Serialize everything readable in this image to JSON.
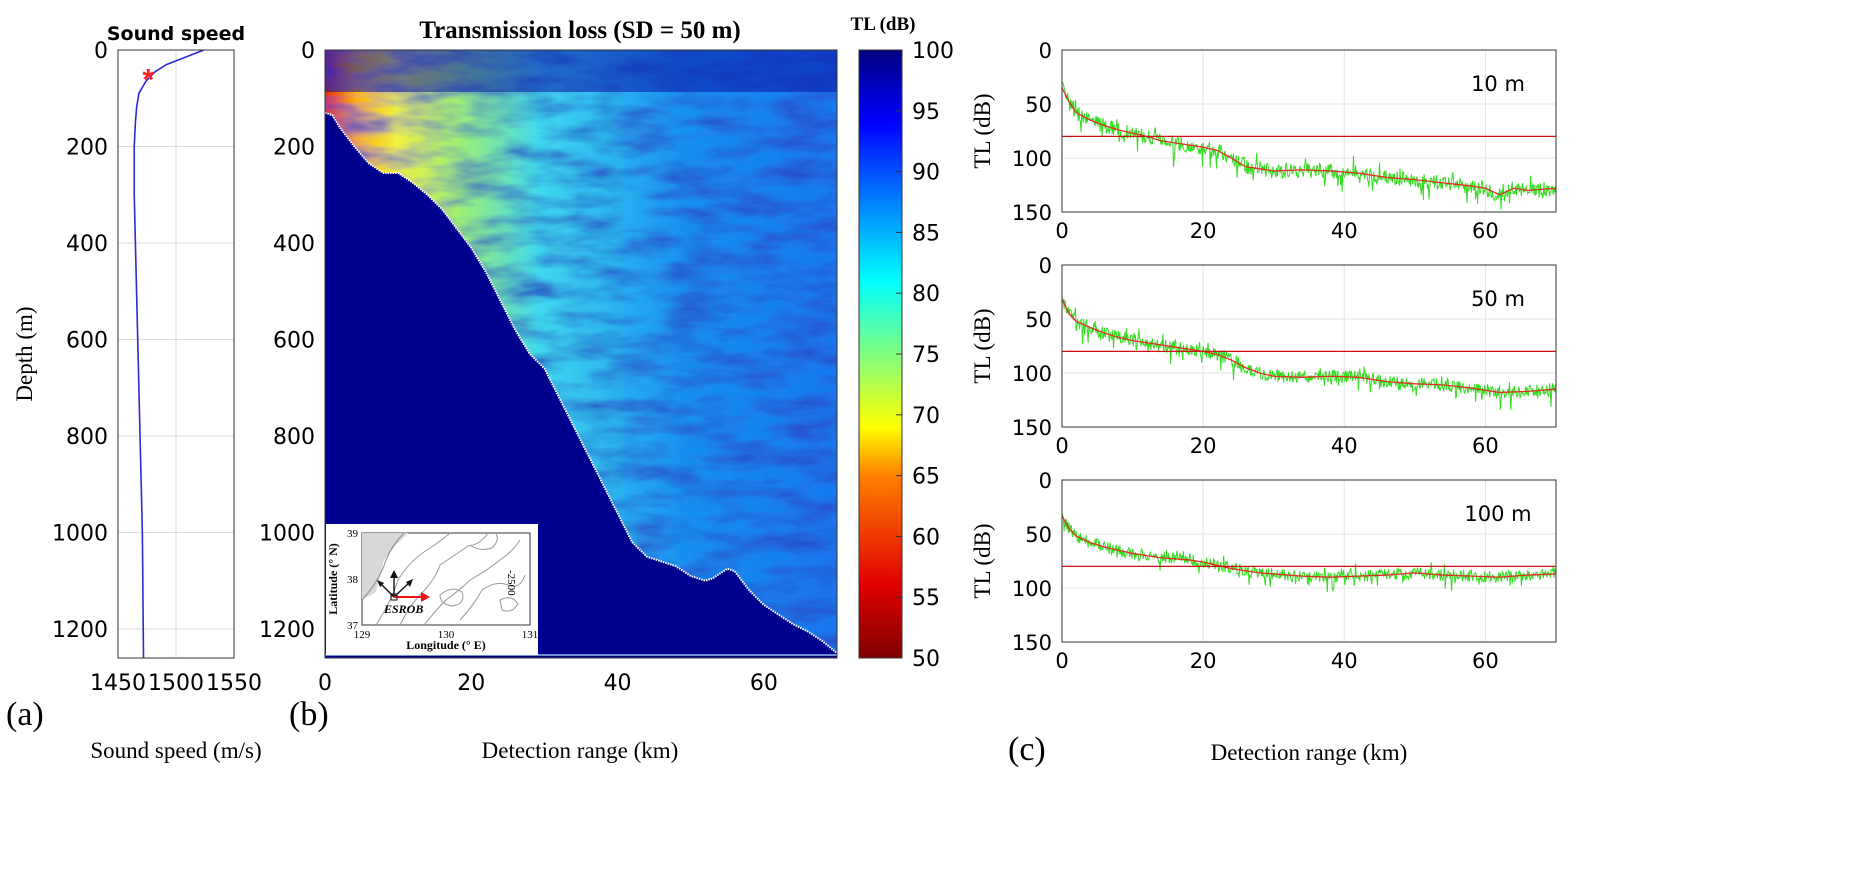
{
  "panel_labels": {
    "a": "(a)",
    "b": "(b)",
    "c": "(c)"
  },
  "chart_data": [
    {
      "id": "sound-speed",
      "type": "line",
      "title": "Sound speed",
      "xlabel": "Sound speed (m/s)",
      "ylabel": "Depth (m)",
      "xlim": [
        1450,
        1550
      ],
      "ylim": [
        0,
        1260
      ],
      "y_reversed": true,
      "xticks": [
        1450,
        1500,
        1550
      ],
      "yticks": [
        0,
        200,
        400,
        600,
        800,
        1000,
        1200
      ],
      "grid": true,
      "series": [
        {
          "name": "profile",
          "color": "#2a2ad8",
          "x": [
            1524,
            1508,
            1492,
            1482,
            1474,
            1468,
            1466,
            1465,
            1464,
            1464,
            1465,
            1466,
            1467,
            1468,
            1469,
            1470,
            1471,
            1472
          ],
          "y": [
            0,
            15,
            30,
            45,
            65,
            90,
            120,
            150,
            200,
            300,
            400,
            500,
            600,
            700,
            800,
            900,
            1000,
            1260
          ]
        }
      ],
      "marker": {
        "x": 1476,
        "y": 50,
        "symbol": "*",
        "color": "#ff2020"
      }
    },
    {
      "id": "transmission-loss",
      "type": "heatmap",
      "title": "Transmission loss (SD = 50 m)",
      "xlabel": "Detection range (km)",
      "xlim": [
        0,
        70
      ],
      "ylim": [
        0,
        1260
      ],
      "y_reversed": true,
      "xticks": [
        0,
        20,
        40,
        60
      ],
      "yticks": [
        0,
        200,
        400,
        600,
        800,
        1000,
        1200
      ],
      "colorbar": {
        "label": "TL (dB)",
        "min": 50,
        "max": 100,
        "ticks": [
          50,
          55,
          60,
          65,
          70,
          75,
          80,
          85,
          90,
          95,
          100
        ]
      },
      "bathymetry": {
        "range_km": [
          0,
          1,
          2,
          4,
          6,
          8,
          10,
          12,
          14,
          16,
          18,
          20,
          22,
          24,
          26,
          28,
          30,
          32,
          34,
          36,
          38,
          40,
          42,
          44,
          46,
          48,
          50,
          52,
          53,
          54,
          55,
          56,
          58,
          60,
          62,
          64,
          66,
          68,
          70
        ],
        "depth_m": [
          130,
          135,
          160,
          200,
          235,
          255,
          255,
          275,
          300,
          330,
          370,
          410,
          460,
          520,
          580,
          630,
          660,
          720,
          780,
          840,
          900,
          960,
          1020,
          1050,
          1060,
          1070,
          1090,
          1100,
          1095,
          1085,
          1075,
          1080,
          1120,
          1150,
          1170,
          1190,
          1205,
          1225,
          1250
        ]
      },
      "inset_map": {
        "xlabel": "Longitude (° E)",
        "ylabel": "Latitude (° N)",
        "xticks": [
          129,
          130,
          131
        ],
        "yticks": [
          37,
          38,
          39
        ],
        "station_label": "ESROB",
        "contour_label": "-2500"
      }
    },
    {
      "id": "tl-10m",
      "type": "line",
      "annotation": "10 m",
      "xlabel": "",
      "ylabel": "TL (dB)",
      "xlim": [
        0,
        70
      ],
      "ylim": [
        0,
        150
      ],
      "y_reversed": true,
      "xticks": [
        0,
        20,
        40,
        60
      ],
      "yticks": [
        0,
        50,
        100,
        150
      ],
      "threshold": 80,
      "series": [
        {
          "name": "TL",
          "color": "#33dd22"
        },
        {
          "name": "smoothed",
          "color": "#e03020",
          "x": [
            0,
            1,
            2,
            4,
            6,
            8,
            10,
            12,
            14,
            16,
            18,
            20,
            22,
            24,
            26,
            28,
            30,
            34,
            38,
            42,
            46,
            50,
            54,
            58,
            60,
            62,
            64,
            66,
            70
          ],
          "y": [
            35,
            48,
            58,
            65,
            70,
            74,
            77,
            80,
            84,
            86,
            88,
            90,
            93,
            100,
            108,
            110,
            112,
            111,
            112,
            114,
            118,
            120,
            123,
            126,
            128,
            134,
            128,
            130,
            128
          ]
        }
      ]
    },
    {
      "id": "tl-50m",
      "type": "line",
      "annotation": "50 m",
      "xlabel": "",
      "ylabel": "TL (dB)",
      "xlim": [
        0,
        70
      ],
      "ylim": [
        0,
        150
      ],
      "y_reversed": true,
      "xticks": [
        0,
        20,
        40,
        60
      ],
      "yticks": [
        0,
        50,
        100,
        150
      ],
      "threshold": 80,
      "series": [
        {
          "name": "TL",
          "color": "#33dd22"
        },
        {
          "name": "smoothed",
          "color": "#e03020",
          "x": [
            0,
            1,
            2,
            4,
            6,
            8,
            10,
            12,
            14,
            16,
            18,
            20,
            22,
            24,
            26,
            28,
            30,
            34,
            38,
            42,
            46,
            50,
            54,
            58,
            62,
            66,
            70
          ],
          "y": [
            32,
            45,
            52,
            58,
            63,
            67,
            70,
            72,
            74,
            76,
            78,
            80,
            83,
            88,
            95,
            100,
            103,
            104,
            103,
            104,
            108,
            110,
            111,
            114,
            118,
            117,
            115
          ]
        }
      ]
    },
    {
      "id": "tl-100m",
      "type": "line",
      "annotation": "100 m",
      "xlabel": "Detection range (km)",
      "ylabel": "TL (dB)",
      "xlim": [
        0,
        70
      ],
      "ylim": [
        0,
        150
      ],
      "y_reversed": true,
      "xticks": [
        0,
        20,
        40,
        60
      ],
      "yticks": [
        0,
        50,
        100,
        150
      ],
      "threshold": 80,
      "series": [
        {
          "name": "TL",
          "color": "#33dd22"
        },
        {
          "name": "smoothed",
          "color": "#e03020",
          "x": [
            0,
            1,
            2,
            4,
            6,
            8,
            10,
            12,
            14,
            16,
            18,
            20,
            22,
            24,
            26,
            28,
            30,
            34,
            38,
            42,
            46,
            50,
            54,
            58,
            62,
            66,
            70
          ],
          "y": [
            33,
            45,
            52,
            58,
            62,
            65,
            68,
            70,
            72,
            73,
            74,
            76,
            79,
            82,
            84,
            86,
            87,
            89,
            90,
            89,
            88,
            86,
            88,
            89,
            90,
            88,
            87
          ]
        }
      ]
    }
  ]
}
